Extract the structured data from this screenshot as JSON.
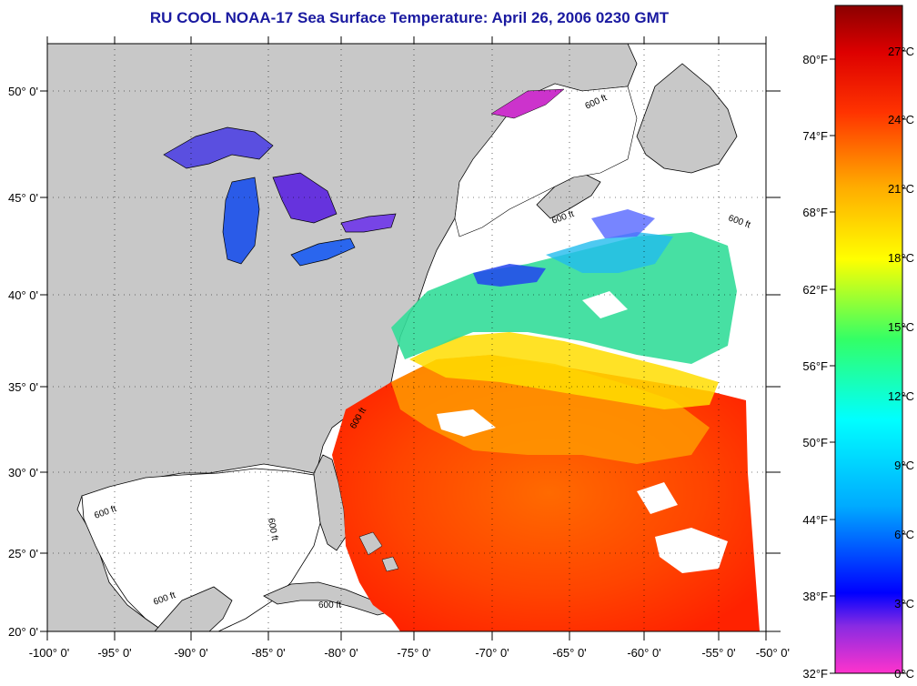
{
  "title": "RU COOL  NOAA-17  Sea Surface Temperature:  April 26, 2006 0230 GMT",
  "map": {
    "lat_labels": [
      "50° 0'",
      "45° 0'",
      "40° 0'",
      "35° 0'",
      "30° 0'",
      "25° 0'",
      "20° 0'"
    ],
    "lon_labels": [
      "-100° 0'",
      "-95° 0'",
      "-90° 0'",
      "-85° 0'",
      "-80° 0'",
      "-75° 0'",
      "-70° 0'",
      "-65° 0'",
      "-60° 0'",
      "-55° 0'",
      "-50° 0'"
    ],
    "contour_label": "600 ft",
    "land_color": "#c8c8c8",
    "no_data_color": "#ffffff"
  },
  "colorbar": {
    "fahrenheit_labels": [
      "80°F",
      "74°F",
      "68°F",
      "62°F",
      "56°F",
      "50°F",
      "44°F",
      "38°F",
      "32°F"
    ],
    "celsius_labels": [
      "27°C",
      "24°C",
      "21°C",
      "18°C",
      "15°C",
      "12°C",
      "9°C",
      "6°C",
      "3°C",
      "0°C"
    ]
  }
}
